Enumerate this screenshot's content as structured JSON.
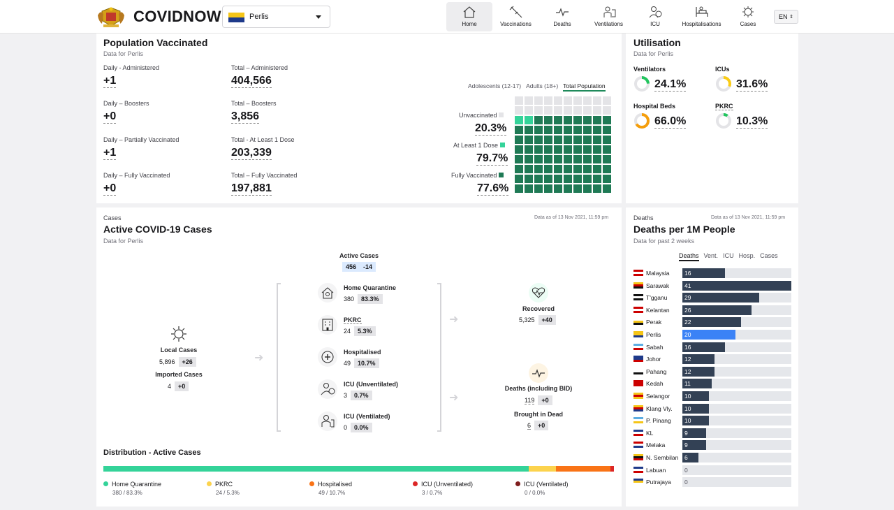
{
  "header": {
    "brand": "COVIDNOW",
    "state": "Perlis",
    "lang": "EN",
    "tabs": [
      {
        "label": "Home",
        "icon": "home-icon"
      },
      {
        "label": "Vaccinations",
        "icon": "syringe-icon"
      },
      {
        "label": "Deaths",
        "icon": "heartbeat-icon"
      },
      {
        "label": "Ventilations",
        "icon": "ventilator-icon"
      },
      {
        "label": "ICU",
        "icon": "icu-icon"
      },
      {
        "label": "Hospitalisations",
        "icon": "hospital-bed-icon"
      },
      {
        "label": "Cases",
        "icon": "virus-icon"
      }
    ]
  },
  "vaccination": {
    "title": "Population Vaccinated",
    "subtitle": "Data for Perlis",
    "stats": [
      {
        "label": "Daily - Administered",
        "value": "+1"
      },
      {
        "label": "Total – Administered",
        "value": "404,566"
      },
      {
        "label": "Daily – Boosters",
        "value": "+0"
      },
      {
        "label": "Total – Boosters",
        "value": "3,856"
      },
      {
        "label": "Daily – Partially Vaccinated",
        "value": "+1"
      },
      {
        "label": "Total - At Least 1 Dose",
        "value": "203,339"
      },
      {
        "label": "Daily – Fully Vaccinated",
        "value": "+0"
      },
      {
        "label": "Total – Fully Vaccinated",
        "value": "197,881"
      }
    ],
    "tabs": [
      "Adolescents (12-17)",
      "Adults (18+)",
      "Total Population"
    ],
    "legend": [
      {
        "label": "Unvaccinated",
        "value": "20.3%",
        "color": "#e4e4e7"
      },
      {
        "label": "At Least 1 Dose",
        "value": "79.7%",
        "color": "#34d399"
      },
      {
        "label": "Fully Vaccinated",
        "value": "77.6%",
        "color": "#1f7a55"
      }
    ]
  },
  "utilisation": {
    "title": "Utilisation",
    "subtitle": "Data for Perlis",
    "items": [
      {
        "label": "Ventilators",
        "value": "24.1%",
        "pct": 24.1,
        "color": "#22c55e"
      },
      {
        "label": "ICUs",
        "value": "31.6%",
        "pct": 31.6,
        "color": "#facc15"
      },
      {
        "label": "Hospital Beds",
        "value": "66.0%",
        "pct": 66.0,
        "color": "#f59e0b"
      },
      {
        "label": "PKRC",
        "value": "10.3%",
        "pct": 10.3,
        "color": "#22c55e"
      }
    ]
  },
  "cases": {
    "category": "Cases",
    "title": "Active COVID-19 Cases",
    "subtitle": "Data for Perlis",
    "asof": "Data as of 13 Nov 2021, 11:59 pm",
    "active": {
      "label": "Active Cases",
      "value": "456",
      "delta": "-14"
    },
    "local": {
      "label": "Local Cases",
      "value": "5,896",
      "delta": "+26"
    },
    "imported": {
      "label": "Imported Cases",
      "value": "4",
      "delta": "+0"
    },
    "centre": [
      {
        "label": "Home Quarantine",
        "value": "380",
        "pct": "83.3%"
      },
      {
        "label": "PKRC",
        "value": "24",
        "pct": "5.3%"
      },
      {
        "label": "Hospitalised",
        "value": "49",
        "pct": "10.7%"
      },
      {
        "label": "ICU (Unventilated)",
        "value": "3",
        "pct": "0.7%"
      },
      {
        "label": "ICU (Ventilated)",
        "value": "0",
        "pct": "0.0%"
      }
    ],
    "recovered": {
      "label": "Recovered",
      "value": "5,325",
      "delta": "+40"
    },
    "deaths": {
      "label": "Deaths (including BID)",
      "value": "119",
      "delta": "+0"
    },
    "bid": {
      "label": "Brought in Dead",
      "value": "6",
      "delta": "+0"
    },
    "distribution": {
      "title": "Distribution - Active Cases",
      "items": [
        {
          "label": "Home Quarantine",
          "value": "380 / 83.3%",
          "pct": 83.3,
          "color": "#34d399"
        },
        {
          "label": "PKRC",
          "value": "24 / 5.3%",
          "pct": 5.3,
          "color": "#fcd34d"
        },
        {
          "label": "Hospitalised",
          "value": "49 / 10.7%",
          "pct": 10.7,
          "color": "#f97316"
        },
        {
          "label": "ICU (Unventilated)",
          "value": "3 / 0.7%",
          "pct": 0.7,
          "color": "#dc2626"
        },
        {
          "label": "ICU (Ventilated)",
          "value": "0 / 0.0%",
          "pct": 0.0,
          "color": "#7f1d1d"
        }
      ]
    }
  },
  "deaths": {
    "category": "Deaths",
    "title": "Deaths per 1M People",
    "subtitle": "Data for past 2 weeks",
    "asof": "Data as of 13 Nov 2021, 11:59 pm",
    "tabs": [
      "Deaths",
      "Vent.",
      "ICU",
      "Hosp.",
      "Cases"
    ],
    "chart_data": {
      "type": "bar",
      "orientation": "horizontal",
      "max": 41,
      "categories": [
        "Malaysia",
        "Sarawak",
        "T'gganu",
        "Kelantan",
        "Perak",
        "Perlis",
        "Sabah",
        "Johor",
        "Pahang",
        "Kedah",
        "Selangor",
        "Klang Vly.",
        "P. Pinang",
        "KL",
        "Melaka",
        "N. Sembilan",
        "Labuan",
        "Putrajaya"
      ],
      "values": [
        16,
        41,
        29,
        26,
        22,
        20,
        16,
        12,
        12,
        11,
        10,
        10,
        10,
        9,
        9,
        6,
        0,
        0
      ],
      "highlight": "Perlis",
      "colors": {
        "bar": "#334155",
        "highlight": "#3b82f6"
      }
    }
  }
}
